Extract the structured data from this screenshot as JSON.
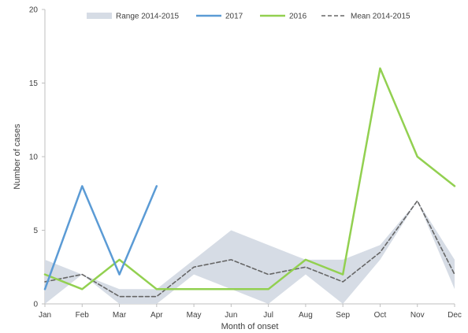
{
  "chart_data": {
    "type": "line",
    "xlabel": "Month of onset",
    "ylabel": "Number of cases",
    "ylim": [
      0,
      20
    ],
    "yticks": [
      0,
      5,
      10,
      15,
      20
    ],
    "categories": [
      "Jan",
      "Feb",
      "Mar",
      "Apr",
      "May",
      "Jun",
      "Jul",
      "Aug",
      "Sep",
      "Oct",
      "Nov",
      "Dec"
    ],
    "legend_position": "top",
    "range": {
      "name": "Range 2014-2015",
      "color": "#d6dce5",
      "min": [
        0,
        2,
        0,
        0,
        2,
        1,
        0,
        2,
        0,
        3,
        7,
        1
      ],
      "max": [
        3,
        2,
        1,
        1,
        3,
        5,
        4,
        3,
        3,
        4,
        7,
        3
      ]
    },
    "series": [
      {
        "name": "2017",
        "color": "#5b9bd5",
        "style": "solid",
        "values": [
          1,
          8,
          2,
          8,
          null,
          null,
          null,
          null,
          null,
          null,
          null,
          null
        ]
      },
      {
        "name": "2016",
        "color": "#92d050",
        "style": "solid",
        "values": [
          2,
          1,
          3,
          1,
          1,
          1,
          1,
          3,
          2,
          16,
          10,
          8
        ]
      },
      {
        "name": "Mean 2014-2015",
        "color": "#666666",
        "style": "dashed",
        "values": [
          1.5,
          2,
          0.5,
          0.5,
          2.5,
          3,
          2,
          2.5,
          1.5,
          3.5,
          7,
          2
        ]
      }
    ]
  }
}
